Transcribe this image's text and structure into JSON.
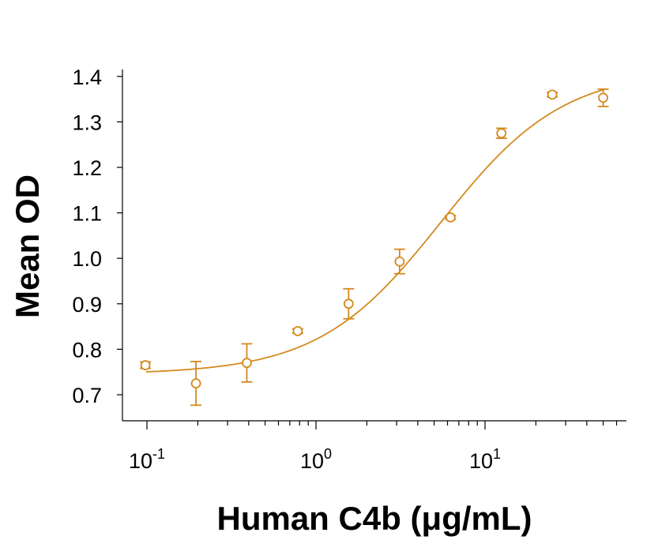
{
  "chart_data": {
    "type": "scatter",
    "title": "",
    "xlabel": "Human C4b (μg/mL)",
    "ylabel": "Mean OD",
    "xscale": "log",
    "xlim": [
      0.1,
      50
    ],
    "ylim": [
      0.65,
      1.41
    ],
    "x_ticks": [
      {
        "value": 0.1,
        "base": "10",
        "exp": "-1"
      },
      {
        "value": 1,
        "base": "10",
        "exp": "0"
      },
      {
        "value": 10,
        "base": "10",
        "exp": "1"
      }
    ],
    "y_ticks": [
      {
        "value": 0.7,
        "label": "0.7"
      },
      {
        "value": 0.8,
        "label": "0.8"
      },
      {
        "value": 0.9,
        "label": "0.9"
      },
      {
        "value": 1.0,
        "label": "1.0"
      },
      {
        "value": 1.1,
        "label": "1.1"
      },
      {
        "value": 1.2,
        "label": "1.2"
      },
      {
        "value": 1.3,
        "label": "1.3"
      },
      {
        "value": 1.4,
        "label": "1.4"
      }
    ],
    "grid": false,
    "color": "#d4891f",
    "series": [
      {
        "points": [
          {
            "x": 0.098,
            "y": 0.765,
            "err": 0.007
          },
          {
            "x": 0.195,
            "y": 0.725,
            "err": 0.048
          },
          {
            "x": 0.39,
            "y": 0.77,
            "err": 0.042
          },
          {
            "x": 0.78,
            "y": 0.84,
            "err": 0.005
          },
          {
            "x": 1.56,
            "y": 0.9,
            "err": 0.033
          },
          {
            "x": 3.125,
            "y": 0.993,
            "err": 0.027
          },
          {
            "x": 6.25,
            "y": 1.09,
            "err": 0.004
          },
          {
            "x": 12.5,
            "y": 1.275,
            "err": 0.011
          },
          {
            "x": 25,
            "y": 1.36,
            "err": 0.005
          },
          {
            "x": 50,
            "y": 1.353,
            "err": 0.019
          }
        ],
        "fit": {
          "model": "4PL",
          "bottom": 0.745,
          "top": 1.415,
          "ec50": 5.5,
          "hill": 1.2
        }
      }
    ]
  }
}
